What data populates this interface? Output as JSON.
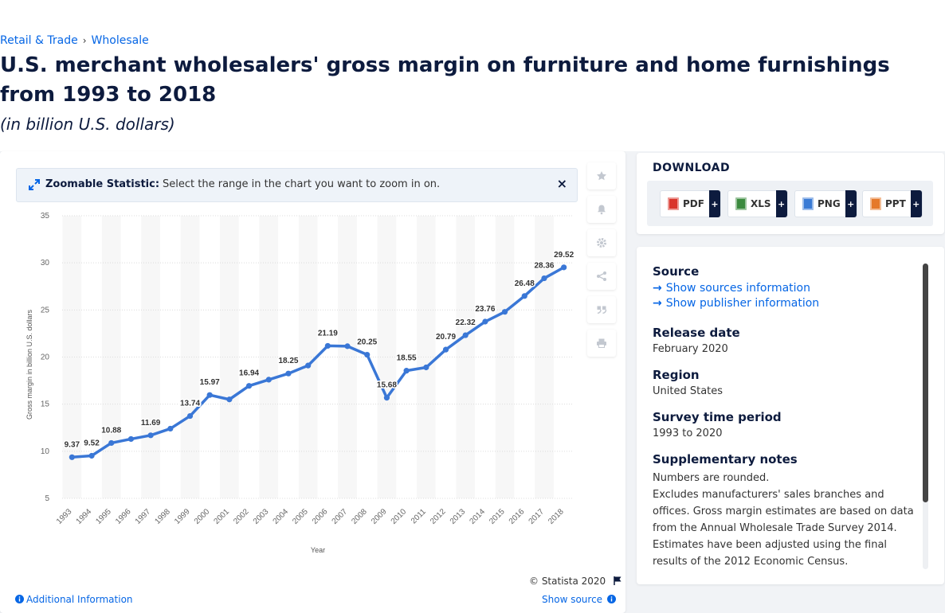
{
  "breadcrumb": {
    "parent": "Retail & Trade",
    "sep": "›",
    "current": "Wholesale"
  },
  "title": "U.S. merchant wholesalers' gross margin on furniture and home furnishings from 1993 to 2018",
  "subtitle": "(in billion U.S. dollars)",
  "zoom_banner": {
    "label": "Zoomable Statistic:",
    "text": "Select the range in the chart you want to zoom in on.",
    "close": "×"
  },
  "toolbar": [
    {
      "name": "favorite-star-icon"
    },
    {
      "name": "notification-bell-icon"
    },
    {
      "name": "settings-gear-icon"
    },
    {
      "name": "share-icon"
    },
    {
      "name": "citation-quote-icon"
    },
    {
      "name": "print-icon"
    }
  ],
  "chart_data": {
    "type": "line",
    "title": "",
    "xlabel": "Year",
    "ylabel": "Gross margin in billion U.S. dollars",
    "ylim": [
      5,
      35
    ],
    "yticks": [
      5,
      10,
      15,
      20,
      25,
      30,
      35
    ],
    "grid": true,
    "color": "#3a77d6",
    "categories": [
      "1993",
      "1994",
      "1995",
      "1996",
      "1997",
      "1998",
      "1999",
      "2000",
      "2001",
      "2002",
      "2003",
      "2004",
      "2005",
      "2006",
      "2007",
      "2008",
      "2009",
      "2010",
      "2011",
      "2012",
      "2013",
      "2014",
      "2015",
      "2016",
      "2017",
      "2018"
    ],
    "values": [
      9.37,
      9.52,
      10.88,
      11.3,
      11.69,
      12.4,
      13.74,
      15.97,
      15.5,
      16.94,
      17.6,
      18.25,
      19.1,
      21.19,
      21.15,
      20.25,
      15.68,
      18.55,
      18.9,
      20.79,
      22.32,
      23.76,
      24.8,
      26.48,
      28.36,
      29.52
    ],
    "data_labels": [
      "9.37",
      "9.52",
      "10.88",
      "",
      "11.69",
      "",
      "13.74",
      "15.97",
      "",
      "16.94",
      "",
      "18.25",
      "",
      "21.19",
      "",
      "20.25",
      "15.68",
      "18.55",
      "",
      "20.79",
      "22.32",
      "23.76",
      "",
      "26.48",
      "28.36",
      "29.52"
    ]
  },
  "footer": {
    "copyright": "© Statista 2020",
    "additional_info": "Additional Information",
    "show_source": "Show source"
  },
  "download": {
    "title": "DOWNLOAD",
    "formats": [
      {
        "label": "PDF",
        "color": "#d9342b"
      },
      {
        "label": "XLS",
        "color": "#3b8a3e"
      },
      {
        "label": "PNG",
        "color": "#3a7bd5"
      },
      {
        "label": "PPT",
        "color": "#e5792b"
      }
    ],
    "plus": "+"
  },
  "info": {
    "source_label": "Source",
    "show_sources": "Show sources information",
    "show_publisher": "Show publisher information",
    "release_label": "Release date",
    "release_value": "February 2020",
    "region_label": "Region",
    "region_value": "United States",
    "survey_label": "Survey time period",
    "survey_value": "1993 to 2020",
    "notes_label": "Supplementary notes",
    "notes": [
      "Numbers are rounded.",
      "Excludes manufacturers' sales branches and offices. Gross margin estimates are based on data from the Annual Wholesale Trade Survey 2014. Estimates have been adjusted using the final results of the 2012 Economic Census."
    ]
  }
}
